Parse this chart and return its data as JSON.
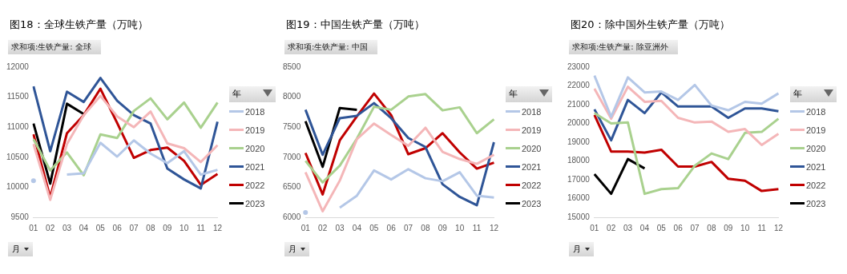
{
  "chart_data": [
    {
      "type": "line",
      "title": "图18：全球生铁产量（万吨）",
      "subtitle": "求和项:生铁产量: 全球",
      "xlabel": "月",
      "legend_title": "年",
      "legend": "right",
      "grid": false,
      "marker": "none",
      "categories": [
        "01",
        "02",
        "03",
        "04",
        "05",
        "06",
        "07",
        "08",
        "09",
        "10",
        "11",
        "12"
      ],
      "ylim": [
        9500,
        12000
      ],
      "yticks": [
        9500,
        10000,
        10500,
        11000,
        11500,
        12000
      ],
      "series": [
        {
          "name": "2018",
          "color": "#b4c7e7",
          "values": [
            10110,
            null,
            10210,
            10230,
            10740,
            10510,
            10780,
            10560,
            10400,
            10600,
            10210,
            10290
          ]
        },
        {
          "name": "2019",
          "color": "#f4b6b8",
          "values": [
            10720,
            9790,
            10720,
            11200,
            11520,
            11180,
            11000,
            11260,
            10730,
            10650,
            10420,
            10700
          ]
        },
        {
          "name": "2020",
          "color": "#a9d18e",
          "values": [
            10800,
            10280,
            10580,
            10200,
            10880,
            10820,
            11270,
            11480,
            11130,
            11410,
            10990,
            11410
          ]
        },
        {
          "name": "2021",
          "color": "#2f5597",
          "values": [
            11680,
            10600,
            11590,
            11420,
            11820,
            11440,
            11200,
            11060,
            10310,
            10130,
            9980,
            11090
          ]
        },
        {
          "name": "2022",
          "color": "#c00000",
          "values": [
            10880,
            9830,
            10900,
            11200,
            11640,
            11070,
            10490,
            10620,
            10660,
            10440,
            10040,
            10220
          ]
        },
        {
          "name": "2023",
          "color": "#000000",
          "values": [
            11060,
            10060,
            11390,
            11220,
            null,
            null,
            null,
            null,
            null,
            null,
            null,
            null
          ]
        }
      ]
    },
    {
      "type": "line",
      "title": "图19：中国生铁产量（万吨）",
      "subtitle": "求和项:生铁产量: 中国",
      "xlabel": "月",
      "legend_title": "年",
      "legend": "right",
      "grid": false,
      "marker": "none",
      "categories": [
        "01",
        "02",
        "03",
        "04",
        "05",
        "06",
        "07",
        "08",
        "09",
        "10",
        "11",
        "12"
      ],
      "ylim": [
        6000,
        8500
      ],
      "yticks": [
        6000,
        6500,
        7000,
        7500,
        8000,
        8500
      ],
      "series": [
        {
          "name": "2018",
          "color": "#b4c7e7",
          "values": [
            6080,
            null,
            6160,
            6360,
            6780,
            6630,
            6800,
            6650,
            6600,
            6750,
            6360,
            6330
          ]
        },
        {
          "name": "2019",
          "color": "#f4b6b8",
          "values": [
            6750,
            6100,
            6610,
            7300,
            7560,
            7370,
            7190,
            7490,
            7090,
            6970,
            6890,
            7040
          ]
        },
        {
          "name": "2020",
          "color": "#a9d18e",
          "values": [
            6940,
            6580,
            6860,
            7310,
            7840,
            7790,
            8010,
            8050,
            7780,
            7830,
            7400,
            7630
          ]
        },
        {
          "name": "2021",
          "color": "#2f5597",
          "values": [
            7790,
            7040,
            7650,
            7690,
            7900,
            7650,
            7320,
            7170,
            6550,
            6340,
            6200,
            7250
          ]
        },
        {
          "name": "2022",
          "color": "#c00000",
          "values": [
            7070,
            6380,
            7280,
            7680,
            8060,
            7700,
            7050,
            7150,
            7400,
            7080,
            6810,
            6910
          ]
        },
        {
          "name": "2023",
          "color": "#000000",
          "values": [
            7600,
            6840,
            7820,
            7790,
            null,
            null,
            null,
            null,
            null,
            null,
            null,
            null
          ]
        }
      ]
    },
    {
      "type": "line",
      "title": "图20：除中国外生铁产量（万吨）",
      "subtitle": "求和项:生铁产量: 除亚洲外",
      "xlabel": "月",
      "legend_title": "年",
      "legend": "right",
      "grid": false,
      "marker": "none",
      "categories": [
        "01",
        "02",
        "03",
        "04",
        "05",
        "06",
        "07",
        "08",
        "09",
        "10",
        "11",
        "12"
      ],
      "ylim": [
        15000,
        23000
      ],
      "yticks": [
        15000,
        16000,
        17000,
        18000,
        19000,
        20000,
        21000,
        22000,
        23000
      ],
      "series": [
        {
          "name": "2018",
          "color": "#b4c7e7",
          "values": [
            22550,
            20350,
            22450,
            21650,
            21700,
            21250,
            22050,
            20950,
            20700,
            21150,
            21050,
            21600
          ]
        },
        {
          "name": "2019",
          "color": "#f4b6b8",
          "values": [
            21850,
            20250,
            21950,
            21150,
            21200,
            20300,
            20050,
            20100,
            19550,
            19700,
            18850,
            19450
          ]
        },
        {
          "name": "2020",
          "color": "#a9d18e",
          "values": [
            20550,
            20000,
            20050,
            16250,
            16500,
            16550,
            17750,
            18400,
            18100,
            19500,
            19550,
            20250
          ]
        },
        {
          "name": "2021",
          "color": "#2f5597",
          "values": [
            20750,
            19100,
            21250,
            20550,
            21650,
            20900,
            20900,
            20900,
            20300,
            20800,
            20800,
            20650
          ]
        },
        {
          "name": "2022",
          "color": "#c00000",
          "values": [
            20450,
            18500,
            18500,
            18450,
            18600,
            17700,
            17700,
            17950,
            17050,
            16950,
            16400,
            16500
          ]
        },
        {
          "name": "2023",
          "color": "#000000",
          "values": [
            17300,
            16250,
            18100,
            17600,
            null,
            null,
            null,
            null,
            null,
            null,
            null,
            null
          ]
        }
      ]
    }
  ]
}
